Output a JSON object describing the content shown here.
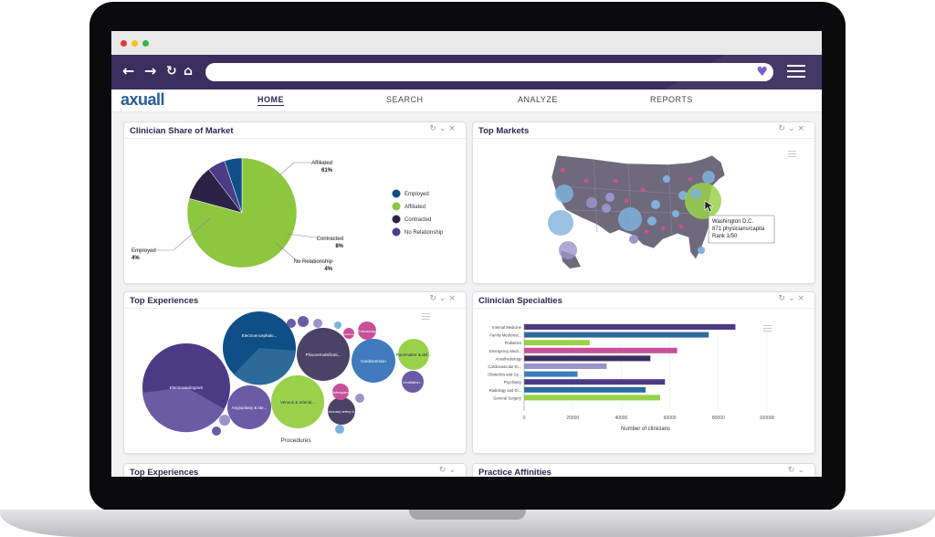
{
  "nav": {
    "logo": "axuall",
    "links": [
      {
        "label": "HOME",
        "active": true
      },
      {
        "label": "SEARCH",
        "active": false
      },
      {
        "label": "ANALYZE",
        "active": false
      },
      {
        "label": "REPORTS",
        "active": false
      }
    ]
  },
  "cards": {
    "share": {
      "title": "Clinician Share of Market",
      "chart_data": {
        "type": "pie",
        "title": "Clinician Share of Market",
        "categories": [
          "Employed",
          "Affiliated",
          "Contracted",
          "No Relationship"
        ],
        "values": [
          4,
          61,
          8,
          4
        ],
        "displayed_labels": [
          "4%",
          "61%",
          "8%",
          "4%"
        ],
        "colors": [
          "#0f4f86",
          "#8dc63f",
          "#2a2345",
          "#4b3a86"
        ],
        "legend": [
          "Employed",
          "Affiliated",
          "Contracted",
          "No Relationship"
        ],
        "legend_position": "right"
      }
    },
    "markets": {
      "title": "Top Markets",
      "tooltip": {
        "line1": "Washington D.C.",
        "line2": "871 physicians/capita",
        "line3": "Rank 1/50"
      }
    },
    "experiences": {
      "title": "Top Experiences",
      "chart_data": {
        "type": "bubble",
        "xlabel": "Procedures",
        "bubbles": [
          {
            "label": "Electrocardiogram"
          },
          {
            "label": "Electroencephalo..."
          },
          {
            "label": "Phacoemulsificati..."
          },
          {
            "label": "Cardioversion"
          },
          {
            "label": "Pacemaker & def..."
          },
          {
            "label": "Angioplasty & ste..."
          },
          {
            "label": "Venous & arterial..."
          },
          {
            "label": "Coronary artery b..."
          },
          {
            "label": "Endoscopy"
          },
          {
            "label": "Ventilation..."
          },
          {
            "label": "Radiofrequency..."
          },
          {
            "label": "Extracorporeal..."
          }
        ]
      }
    },
    "specialties": {
      "title": "Clinician Specialties",
      "chart_data": {
        "type": "bar",
        "orientation": "horizontal",
        "categories": [
          "Internal Medicine",
          "Family Medicinal...",
          "Pediatrics",
          "Emergency Medi...",
          "Anesthesiology",
          "Cardiovascular Di...",
          "Obstetrics and Gy...",
          "Psychiatry",
          "Radiology and Di...",
          "General Surgery"
        ],
        "values": [
          87000,
          76000,
          27000,
          63000,
          52000,
          34000,
          22000,
          58000,
          50000,
          56000
        ],
        "colors": [
          "#4b3a86",
          "#2d6a9c",
          "#9ad14b",
          "#c8509a",
          "#3a2e5f",
          "#9b94c8",
          "#3f7bbd",
          "#4b3a86",
          "#2d6a9c",
          "#9ad14b"
        ],
        "xticks": [
          "0",
          "20000",
          "40000",
          "60000",
          "80000",
          "100000"
        ],
        "xlim": [
          0,
          100000
        ],
        "xlabel": "Number of clinicians"
      }
    },
    "experiences2": {
      "title": "Top Experiences"
    },
    "affinities": {
      "title": "Practice Affinities"
    }
  }
}
